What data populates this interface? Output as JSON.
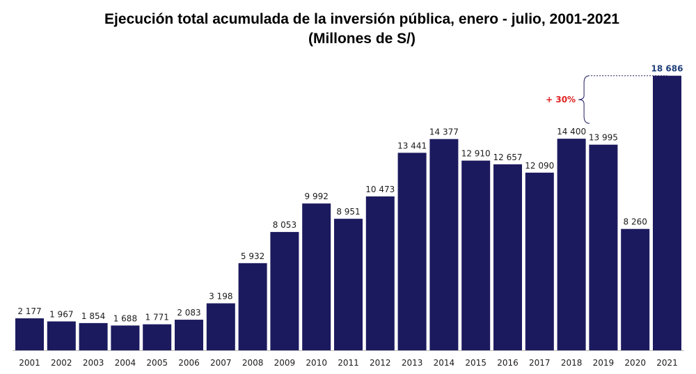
{
  "chart_data": {
    "type": "bar",
    "title": "Ejecución total acumulada de la inversión pública, enero - julio, 2001-2021",
    "subtitle": "(Millones de S/)",
    "categories": [
      "2001",
      "2002",
      "2003",
      "2004",
      "2005",
      "2006",
      "2007",
      "2008",
      "2009",
      "2010",
      "2011",
      "2012",
      "2013",
      "2014",
      "2015",
      "2016",
      "2017",
      "2018",
      "2019",
      "2020",
      "2021"
    ],
    "values": [
      2177,
      1967,
      1854,
      1688,
      1771,
      2083,
      3198,
      5932,
      8053,
      9992,
      8951,
      10473,
      13441,
      14377,
      12910,
      12657,
      12090,
      14400,
      13995,
      8260,
      18686
    ],
    "value_labels": [
      "2 177",
      "1 967",
      "1 854",
      "1 688",
      "1 771",
      "2 083",
      "3 198",
      "5 932",
      "8 053",
      "9 992",
      "8 951",
      "10 473",
      "13 441",
      "14 377",
      "12 910",
      "12 657",
      "12 090",
      "14 400",
      "13 995",
      "8 260",
      "18 686"
    ],
    "ylim": [
      0,
      20000
    ],
    "grid": false,
    "bar_color": "#1c1a5e",
    "highlight_label_color": "#1f3f7a",
    "annotation": {
      "text": "+ 30%",
      "color": "#e02020",
      "from_category": "2018",
      "to_category": "2021"
    }
  }
}
